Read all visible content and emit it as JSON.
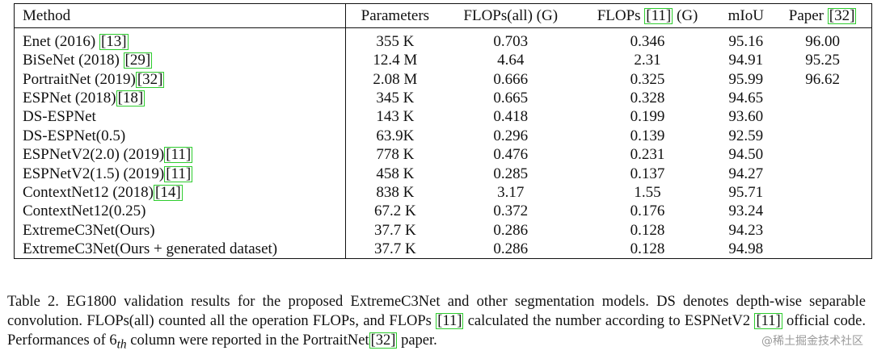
{
  "table": {
    "headers": {
      "method": "Method",
      "parameters": "Parameters",
      "flops_all": "FLOPs(all) (G)",
      "flops_pre": "FLOPs ",
      "flops_cite": "[11]",
      "flops_post": " (G)",
      "miou": "mIoU",
      "paper_pre": "Paper ",
      "paper_cite": "[32]"
    },
    "rows": [
      {
        "method": "Enet (2016) ",
        "cite": "[13]",
        "params": "355 K",
        "flops_all": "0.703",
        "flops": "0.346",
        "miou": "95.16",
        "paper": "96.00",
        "bold": false
      },
      {
        "method": "BiSeNet (2018) ",
        "cite": "[29]",
        "params": "12.4 M",
        "flops_all": "4.64",
        "flops": "2.31",
        "miou": "94.91",
        "paper": "95.25",
        "bold": false
      },
      {
        "method": "PortraitNet (2019)",
        "cite": "[32]",
        "params": "2.08 M",
        "flops_all": "0.666",
        "flops": "0.325",
        "miou": "95.99",
        "paper": "96.62",
        "bold": false
      },
      {
        "method": "ESPNet (2018)",
        "cite": "[18]",
        "params": "345 K",
        "flops_all": "0.665",
        "flops": "0.328",
        "miou": "94.65",
        "paper": "",
        "bold": false
      },
      {
        "method": "DS-ESPNet",
        "cite": "",
        "params": "143 K",
        "flops_all": "0.418",
        "flops": "0.199",
        "miou": "93.60",
        "paper": "",
        "bold": false
      },
      {
        "method": "DS-ESPNet(0.5)",
        "cite": "",
        "params": "63.9K",
        "flops_all": "0.296",
        "flops": "0.139",
        "miou": "92.59",
        "paper": "",
        "bold": false
      },
      {
        "method": "ESPNetV2(2.0) (2019)",
        "cite": "[11]",
        "params": "778 K",
        "flops_all": "0.476",
        "flops": "0.231",
        "miou": "94.50",
        "paper": "",
        "bold": false
      },
      {
        "method": "ESPNetV2(1.5) (2019)",
        "cite": "[11]",
        "params": "458 K",
        "flops_all": "0.285",
        "flops": "0.137",
        "miou": "94.27",
        "paper": "",
        "bold": false
      },
      {
        "method": "ContextNet12 (2018)",
        "cite": "[14]",
        "params": "838 K",
        "flops_all": "3.17",
        "flops": "1.55",
        "miou": "95.71",
        "paper": "",
        "bold": false
      },
      {
        "method": "ContextNet12(0.25)",
        "cite": "",
        "params": "67.2 K",
        "flops_all": "0.372",
        "flops": "0.176",
        "miou": "93.24",
        "paper": "",
        "bold": false
      },
      {
        "method": "ExtremeC3Net(Ours)",
        "cite": "",
        "params": "37.7 K",
        "flops_all": "0.286",
        "flops": "0.128",
        "miou": "94.23",
        "paper": "",
        "bold": true
      },
      {
        "method": "ExtremeC3Net(Ours + generated dataset)",
        "cite": "",
        "params": "37.7 K",
        "flops_all": "0.286",
        "flops": "0.128",
        "miou": "94.98",
        "paper": "",
        "bold": true
      }
    ]
  },
  "caption": {
    "t1": "Table 2. EG1800 validation results for the proposed ExtremeC3Net and other segmentation models. DS denotes depth-wise separable convolution. FLOPs(all) counted all the operation FLOPs, and FLOPs ",
    "c1": "[11]",
    "t2": " calculated the number according to ESPNetV2 ",
    "c2": "[11]",
    "t3": " official code. Performances of 6",
    "sub": "th",
    "t4": " column were reported in the PortraitNet",
    "c3": "[32]",
    "t5": " paper."
  },
  "watermark": "@稀土掘金技术社区"
}
